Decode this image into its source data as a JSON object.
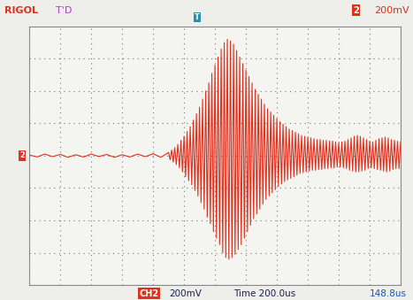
{
  "chart_data": {
    "type": "line",
    "color": "#e0301e",
    "grid": true,
    "tick_labels": false,
    "xlim": [
      0,
      2400
    ],
    "xticks": [
      0,
      200,
      400,
      600,
      800,
      1000,
      1200,
      1400,
      1600,
      1800,
      2000,
      2200,
      2400
    ],
    "ylim": [
      -800,
      800
    ],
    "yticks": [
      -800,
      -600,
      -400,
      -200,
      0,
      200,
      400,
      600,
      800
    ],
    "x": [
      0,
      50,
      100,
      150,
      200,
      250,
      300,
      350,
      400,
      450,
      500,
      550,
      600,
      650,
      700,
      750,
      800,
      850,
      900,
      910,
      920,
      930,
      940,
      950,
      960,
      970,
      980,
      990,
      1000,
      1010,
      1020,
      1030,
      1040,
      1050,
      1060,
      1070,
      1080,
      1090,
      1100,
      1110,
      1120,
      1130,
      1140,
      1150,
      1160,
      1170,
      1180,
      1190,
      1200,
      1210,
      1220,
      1230,
      1240,
      1250,
      1260,
      1270,
      1280,
      1290,
      1300,
      1310,
      1320,
      1330,
      1340,
      1350,
      1360,
      1370,
      1380,
      1390,
      1400,
      1410,
      1420,
      1430,
      1440,
      1450,
      1460,
      1470,
      1480,
      1490,
      1500,
      1510,
      1520,
      1530,
      1540,
      1550,
      1560,
      1570,
      1580,
      1590,
      1600,
      1610,
      1620,
      1630,
      1640,
      1650,
      1660,
      1670,
      1680,
      1690,
      1700,
      1710,
      1720,
      1730,
      1740,
      1750,
      1760,
      1770,
      1780,
      1790,
      1800,
      1810,
      1820,
      1830,
      1840,
      1850,
      1860,
      1870,
      1880,
      1890,
      1900,
      1910,
      1920,
      1930,
      1940,
      1950,
      1960,
      1970,
      1980,
      1990,
      2000,
      2010,
      2020,
      2030,
      2040,
      2050,
      2060,
      2070,
      2080,
      2090,
      2100,
      2110,
      2120,
      2130,
      2140,
      2150,
      2160,
      2170,
      2180,
      2190,
      2200,
      2210,
      2220,
      2230,
      2240,
      2250,
      2260,
      2270,
      2280,
      2290,
      2300,
      2310,
      2320,
      2330,
      2340,
      2350,
      2360,
      2370,
      2380,
      2390,
      2400
    ],
    "values": [
      5,
      -8,
      10,
      -6,
      8,
      -10,
      6,
      -8,
      10,
      -5,
      8,
      -10,
      6,
      -8,
      10,
      -6,
      12,
      -10,
      20,
      -25,
      35,
      -40,
      50,
      -55,
      70,
      -75,
      95,
      -100,
      120,
      -130,
      150,
      -155,
      180,
      -180,
      220,
      -215,
      260,
      -250,
      300,
      -290,
      350,
      -330,
      400,
      -380,
      450,
      -420,
      510,
      -470,
      560,
      -510,
      610,
      -550,
      660,
      -600,
      700,
      -630,
      720,
      -640,
      710,
      -630,
      690,
      -610,
      650,
      -580,
      610,
      -550,
      570,
      -510,
      530,
      -470,
      490,
      -430,
      450,
      -390,
      410,
      -360,
      380,
      -330,
      350,
      -300,
      320,
      -270,
      290,
      -250,
      270,
      -230,
      250,
      -210,
      230,
      -190,
      210,
      -175,
      195,
      -160,
      180,
      -150,
      165,
      -140,
      155,
      -130,
      145,
      -120,
      135,
      -110,
      125,
      -105,
      120,
      -100,
      115,
      -95,
      110,
      -90,
      105,
      -90,
      100,
      -85,
      100,
      -85,
      95,
      -80,
      95,
      -80,
      90,
      -75,
      90,
      -75,
      85,
      -70,
      80,
      -70,
      85,
      -75,
      90,
      -80,
      100,
      -90,
      110,
      -95,
      120,
      -100,
      125,
      -100,
      120,
      -95,
      110,
      -90,
      100,
      -80,
      90,
      -75,
      85,
      -80,
      95,
      -85,
      105,
      -90,
      110,
      -95,
      115,
      -100,
      110,
      -95,
      100,
      -85,
      95,
      -80,
      90,
      -80,
      85
    ]
  },
  "screen": {
    "brand": "RIGOL",
    "status": "T'D",
    "trigger_source": "2",
    "trigger_level": "200mV",
    "trigger_marker": "T",
    "channel_marker": "2",
    "channel": "CH2",
    "channel_scale": "200mV",
    "timebase": "Time 200.0us",
    "trigger_offset": "148.8us"
  }
}
